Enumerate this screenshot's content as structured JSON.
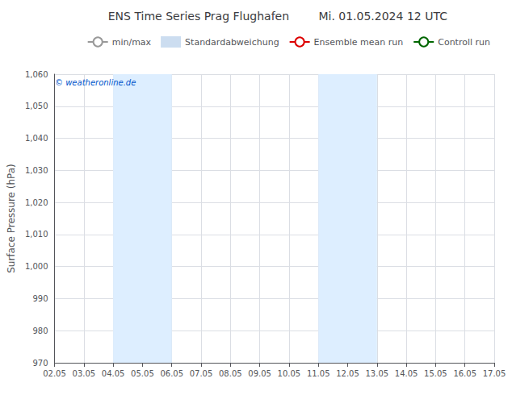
{
  "chart_data": {
    "type": "line",
    "title": "ENS Time Series Prag Flughafen",
    "subtitle": "Mi. 01.05.2024 12 UTC",
    "ylabel": "Surface Pressure (hPa)",
    "categories": [
      "02.05",
      "03.05",
      "04.05",
      "05.05",
      "06.05",
      "07.05",
      "08.05",
      "09.05",
      "10.05",
      "11.05",
      "12.05",
      "13.05",
      "14.05",
      "15.05",
      "16.05",
      "17.05"
    ],
    "series": [
      {
        "name": "min/max",
        "color": "#999999",
        "type": "line",
        "values": [
          null,
          null,
          null,
          null,
          null,
          null,
          null,
          null,
          null,
          null,
          null,
          null,
          null,
          null,
          null,
          null
        ]
      },
      {
        "name": "Standardabweichung",
        "color": "#ccddf0",
        "type": "area",
        "values": [
          null,
          null,
          null,
          null,
          null,
          null,
          null,
          null,
          null,
          null,
          null,
          null,
          null,
          null,
          null,
          null
        ]
      },
      {
        "name": "Ensemble mean run",
        "color": "#dd0000",
        "type": "line",
        "values": [
          null,
          null,
          null,
          null,
          null,
          null,
          null,
          null,
          null,
          null,
          null,
          null,
          null,
          null,
          null,
          null
        ]
      },
      {
        "name": "Controll run",
        "color": "#006600",
        "type": "line",
        "values": [
          null,
          null,
          null,
          null,
          null,
          null,
          null,
          null,
          null,
          null,
          null,
          null,
          null,
          null,
          null,
          null
        ]
      }
    ],
    "ylim": [
      970,
      1060
    ],
    "yticks": [
      970,
      980,
      990,
      1000,
      1010,
      1020,
      1030,
      1040,
      1050,
      1060
    ],
    "grid": true,
    "legend": "upper right",
    "shaded_regions": [
      {
        "from": "04.05",
        "to": "06.05",
        "color": "#ddeeff"
      },
      {
        "from": "11.05",
        "to": "13.05",
        "color": "#ddeeff"
      }
    ],
    "annotations": [
      {
        "text": "© weatheronline.de",
        "color": "#0055cc"
      }
    ]
  }
}
